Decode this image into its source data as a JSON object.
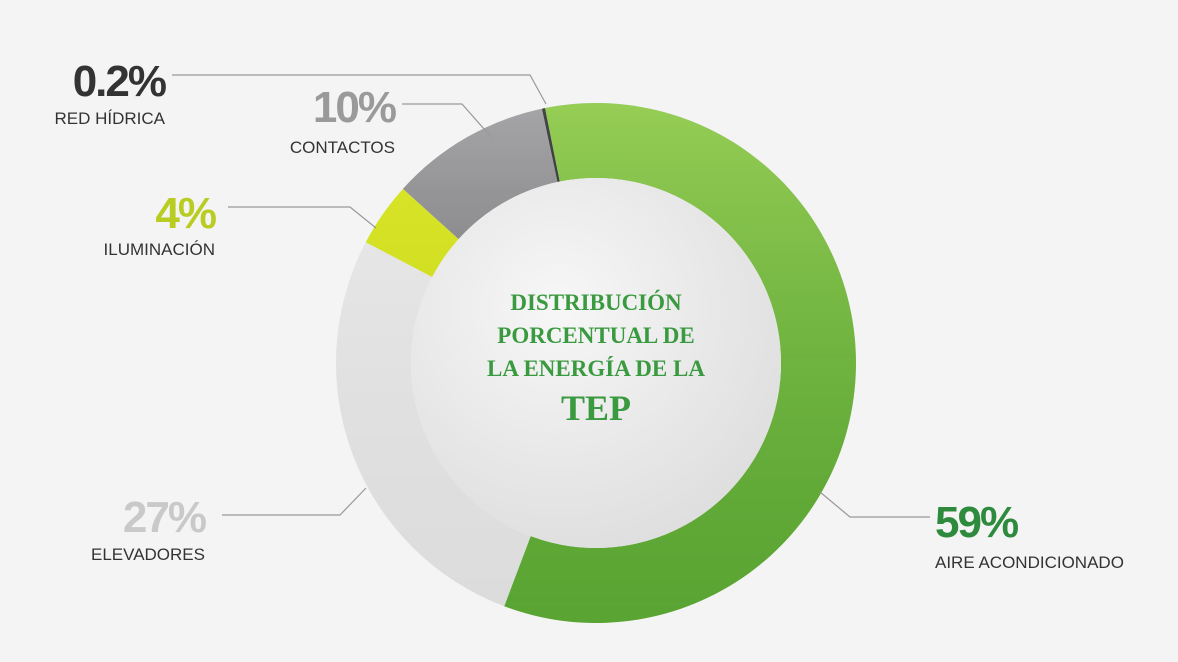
{
  "chart_data": {
    "type": "donut",
    "title_lines": [
      "DISTRIBUCIÓN",
      "PORCENTUAL DE",
      "LA ENERGÍA DE LA",
      "TEP"
    ],
    "categories": [
      "AIRE ACONDICIONADO",
      "ELEVADORES",
      "ILUMINACIÓN",
      "CONTACTOS",
      "RED HÍDRICA"
    ],
    "values": [
      59,
      27,
      4,
      10,
      0.2
    ],
    "value_labels": [
      "59%",
      "27%",
      "4%",
      "10%",
      "0.2%"
    ],
    "colors": [
      "#6fb33f",
      "#e2e2e2",
      "#cddc1f",
      "#7b7b7d",
      "#333333"
    ],
    "label_colors": [
      "#2e8b3e",
      "#c9c9c9",
      "#b9cc22",
      "#9a9a9a",
      "#333333"
    ],
    "title_color": "#3a9a3f"
  }
}
